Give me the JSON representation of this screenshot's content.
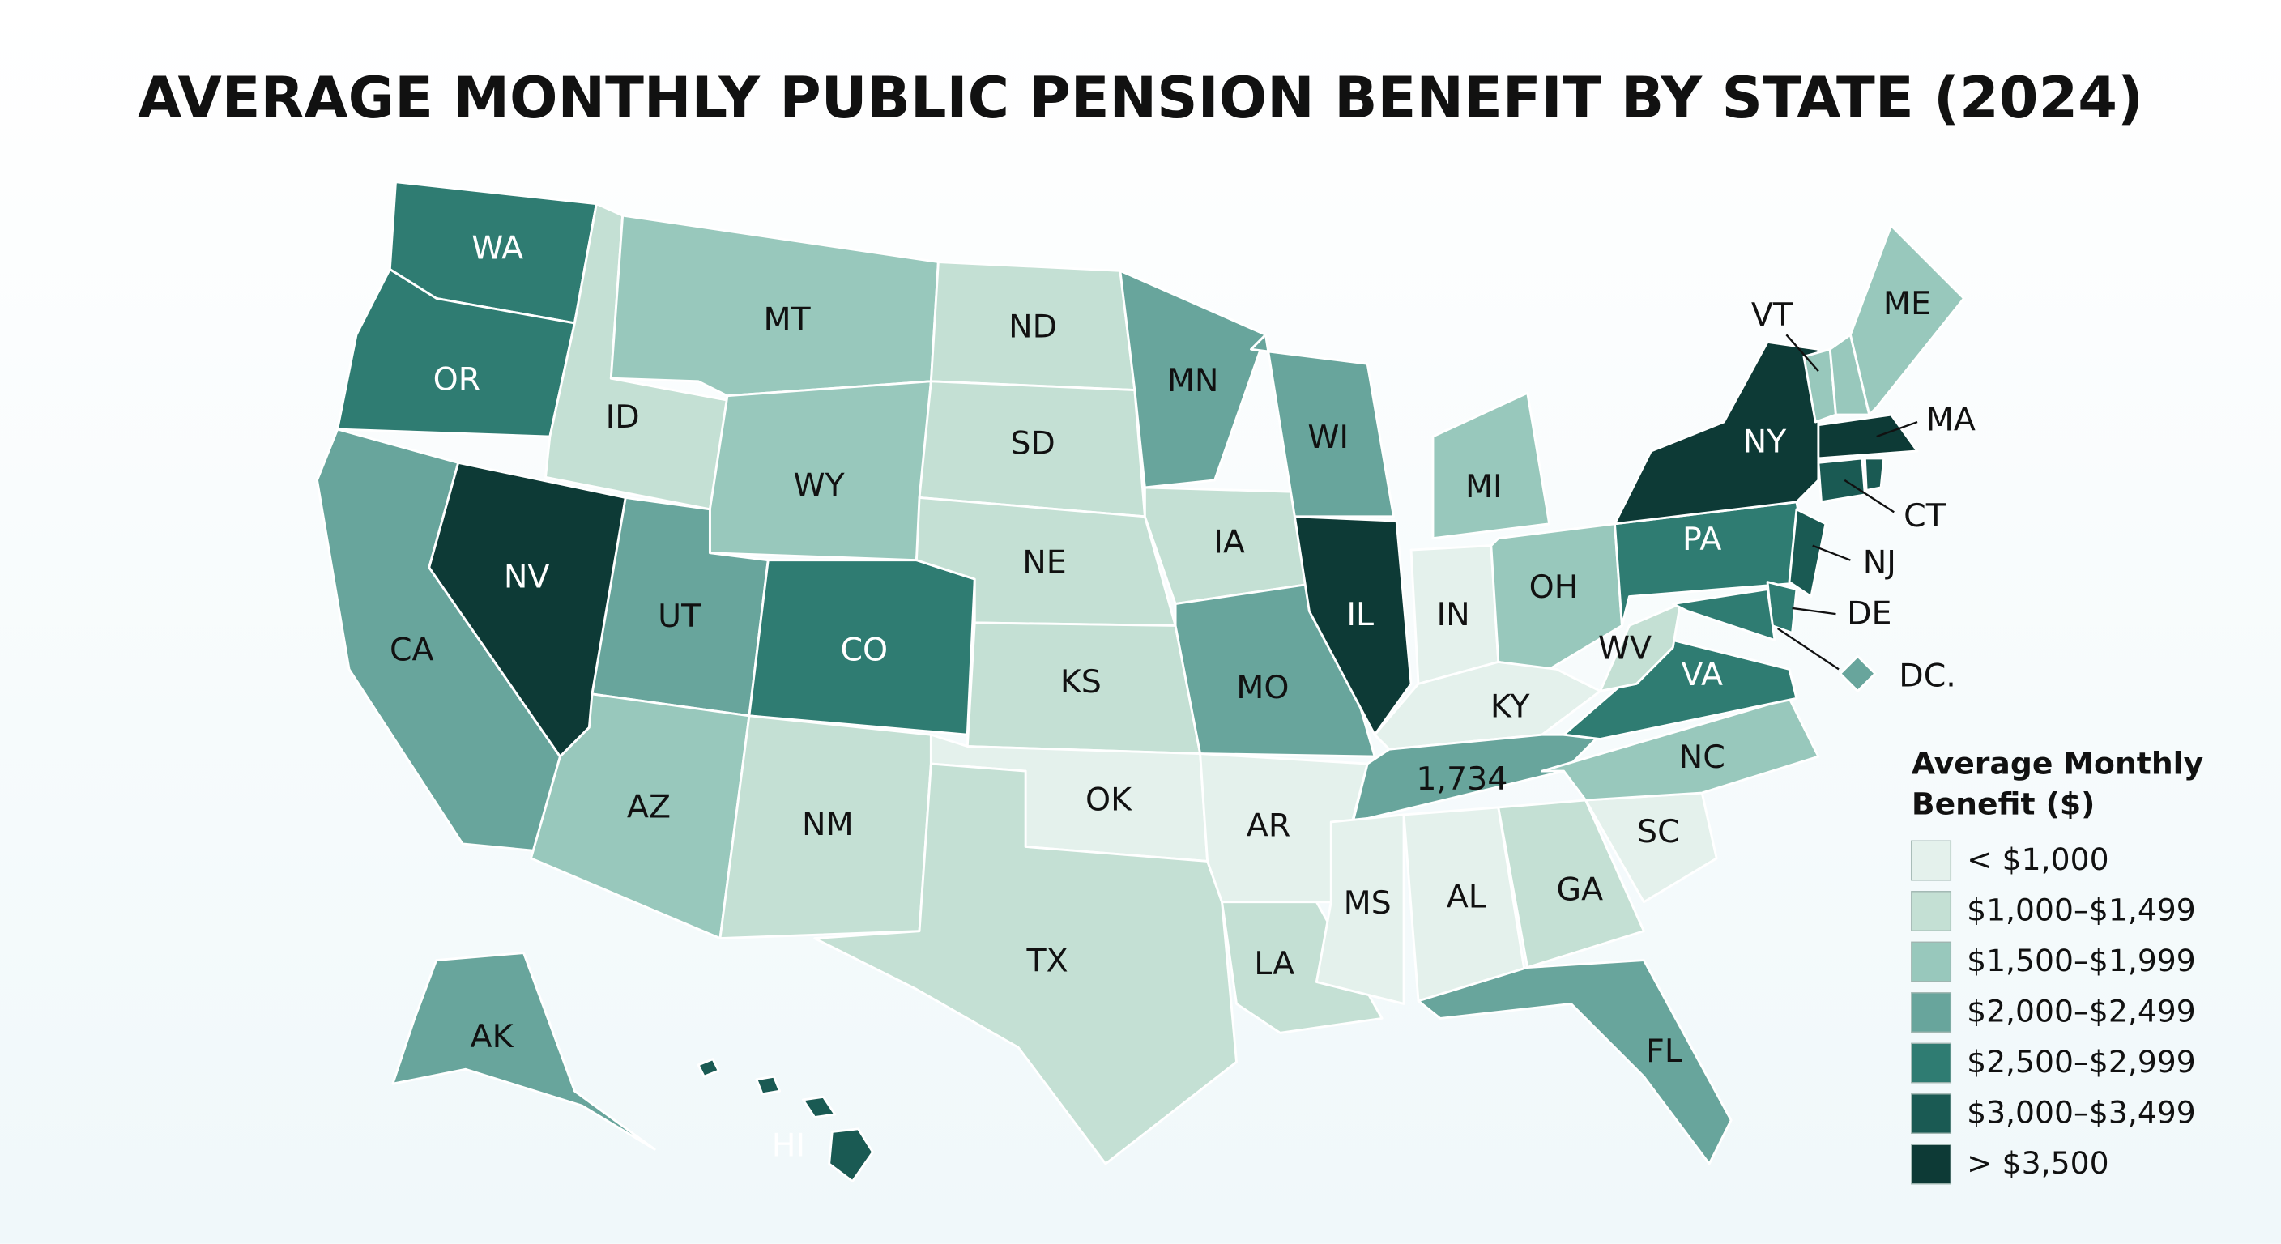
{
  "title": "AVERAGE MONTHLY PUBLIC PENSION BENEFIT BY STATE (2024)",
  "regions": [
    {
      "label": "WA",
      "color": "#2f7c72"
    },
    {
      "label": "OR",
      "color": "#2f7c72"
    },
    {
      "label": "CA",
      "color": "#68a59c"
    },
    {
      "label": "NV",
      "color": "#0d3a36"
    },
    {
      "label": "ID",
      "color": "#c4e0d4"
    },
    {
      "label": "MT",
      "color": "#98c8bc"
    },
    {
      "label": "WY",
      "color": "#98c8bc"
    },
    {
      "label": "UT",
      "color": "#68a59c"
    },
    {
      "label": "CO",
      "color": "#2f7c72"
    },
    {
      "label": "AZ",
      "color": "#98c8bc"
    },
    {
      "label": "NM",
      "color": "#c4e0d4"
    },
    {
      "label": "ND",
      "color": "#c4e0d4"
    },
    {
      "label": "SD",
      "color": "#c4e0d4"
    },
    {
      "label": "NE",
      "color": "#c4e0d4"
    },
    {
      "label": "KS",
      "color": "#c4e0d4"
    },
    {
      "label": "OK",
      "color": "#e4f1ec"
    },
    {
      "label": "TX",
      "color": "#c4e0d4"
    },
    {
      "label": "MN",
      "color": "#68a59c"
    },
    {
      "label": "IA",
      "color": "#c4e0d4"
    },
    {
      "label": "MO",
      "color": "#68a59c"
    },
    {
      "label": "AR",
      "color": "#e4f1ec"
    },
    {
      "label": "LA",
      "color": "#c4e0d4"
    },
    {
      "label": "WI",
      "color": "#68a59c"
    },
    {
      "label": "IL",
      "color": "#0d3a36"
    },
    {
      "label": "MI",
      "color": "#98c8bc"
    },
    {
      "label": "IN",
      "color": "#e4f1ec"
    },
    {
      "label": "OH",
      "color": "#98c8bc"
    },
    {
      "label": "KY",
      "color": "#e4f1ec"
    },
    {
      "label": "1,734",
      "color": "#68a59c"
    },
    {
      "label": "MS",
      "color": "#e4f1ec"
    },
    {
      "label": "AL",
      "color": "#e4f1ec"
    },
    {
      "label": "GA",
      "color": "#c4e0d4"
    },
    {
      "label": "FL",
      "color": "#68a59c"
    },
    {
      "label": "SC",
      "color": "#e4f1ec"
    },
    {
      "label": "NC",
      "color": "#98c8bc"
    },
    {
      "label": "VA",
      "color": "#2f7c72"
    },
    {
      "label": "WV",
      "color": "#c4e0d4"
    },
    {
      "label": "PA",
      "color": "#2f7c72"
    },
    {
      "label": "NY",
      "color": "#0d3a36"
    },
    {
      "label": "NJ",
      "color": "#1a5a53"
    },
    {
      "label": "DE",
      "color": "#2f7c72"
    },
    {
      "label": null,
      "color": "#2f7c72"
    },
    {
      "label": "DC.",
      "color": "#68a59c"
    },
    {
      "label": "VT",
      "color": "#98c8bc"
    },
    {
      "label": null,
      "color": "#98c8bc"
    },
    {
      "label": "ME",
      "color": "#98c8bc"
    },
    {
      "label": "MA",
      "color": "#0d3a36"
    },
    {
      "label": "CT",
      "color": "#1a5a53"
    },
    {
      "label": null,
      "color": "#1a5a53"
    },
    {
      "label": "AK",
      "color": "#68a59c"
    },
    {
      "label": "HI",
      "color": "#1a5a53"
    }
  ],
  "legend": {
    "title": [
      "Average Monthly",
      "Benefit ($)"
    ],
    "items": [
      {
        "label": "< $1,000",
        "color": "#e4f1ec"
      },
      {
        "label": "$1,000–$1,499",
        "color": "#c4e0d4"
      },
      {
        "label": "$1,500–$1,999",
        "color": "#98c8bc"
      },
      {
        "label": "$2,000–$2,499",
        "color": "#68a59c"
      },
      {
        "label": "$2,500–$2,999",
        "color": "#2f7c72"
      },
      {
        "label": "$3,000–$3,499",
        "color": "#1a5a53"
      },
      {
        "label": "> $3,500",
        "color": "#0d3a36"
      }
    ]
  }
}
